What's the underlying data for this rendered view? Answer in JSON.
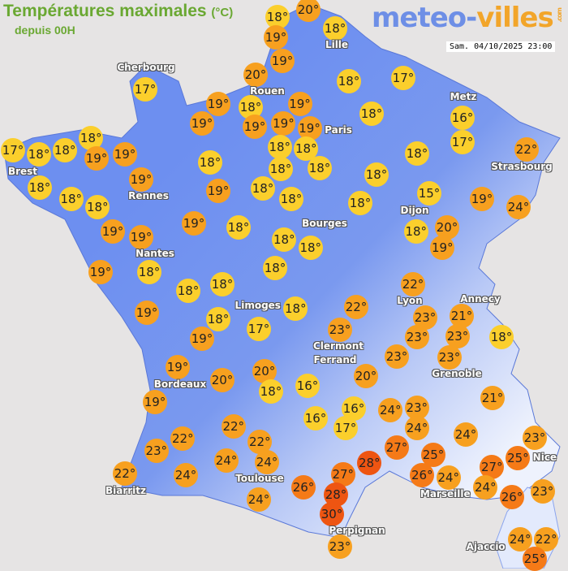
{
  "header": {
    "title": "Températures maximales",
    "unit": "(°C)",
    "subtitle": "depuis 00H",
    "logo": {
      "part1": "meteo-",
      "part2": "villes",
      "suffix": ".com"
    },
    "datetime": "Sam. 04/10/2025 23:00"
  },
  "colors": {
    "background": "#e6e4e4",
    "land_low": "#6d8ff0",
    "land_high": "#e8eefc",
    "temp_15_18": "#fbcf2c",
    "temp_19_24": "#f7a01f",
    "temp_25_27": "#f57a17",
    "temp_28_30": "#ee5512"
  },
  "cities": [
    "Lille",
    "Cherbourg",
    "Rouen",
    "Paris",
    "Metz",
    "Strasbourg",
    "Brest",
    "Rennes",
    "Dijon",
    "Bourges",
    "Nantes",
    "Limoges",
    "Lyon",
    "Annecy",
    "Clermont",
    "Ferrand",
    "Grenoble",
    "Bordeaux",
    "Nice",
    "Toulouse",
    "Marseille",
    "Biarritz",
    "Perpignan",
    "Ajaccio"
  ],
  "temperatures": [
    "18°",
    "20°",
    "19°",
    "18°",
    "19°",
    "20°",
    "18°",
    "17°",
    "17°",
    "19°",
    "18°",
    "19°",
    "19°",
    "19°",
    "19°",
    "19°",
    "18°",
    "16°",
    "17°",
    "18°",
    "18°",
    "18°",
    "19°",
    "19°",
    "18°",
    "18°",
    "18°",
    "17°",
    "22°",
    "18°",
    "18°",
    "18°",
    "19°",
    "19°",
    "18°",
    "18°",
    "18°",
    "18°",
    "18°",
    "18°",
    "18°",
    "15°",
    "19°",
    "24°",
    "19°",
    "19°",
    "19°",
    "18°",
    "18°",
    "18°",
    "18°",
    "20°",
    "19°",
    "19°",
    "18°",
    "18°",
    "18°",
    "18°",
    "19°",
    "18°",
    "18°",
    "22°",
    "22°",
    "23°",
    "21°",
    "23°",
    "23°",
    "18°",
    "19°",
    "17°",
    "23°",
    "23°",
    "23°",
    "19°",
    "20°",
    "20°",
    "18°",
    "16°",
    "20°",
    "19°",
    "16°",
    "24°",
    "23°",
    "24°",
    "21°",
    "16°",
    "17°",
    "22°",
    "22°",
    "22°",
    "24°",
    "23°",
    "27°",
    "28°",
    "25°",
    "26°",
    "24°",
    "27°",
    "25°",
    "23°",
    "22°",
    "24°",
    "24°",
    "24°",
    "27°",
    "26°",
    "24°",
    "23°",
    "28°",
    "30°",
    "24°",
    "26°",
    "23°",
    "24°",
    "22°",
    "25°"
  ]
}
